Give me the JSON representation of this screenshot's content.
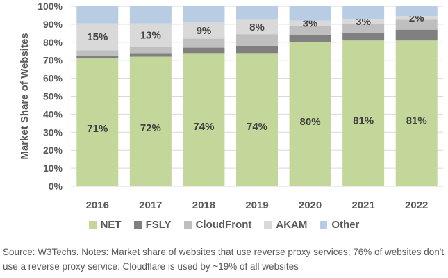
{
  "chart_data": {
    "type": "bar",
    "stacked": true,
    "title": "",
    "xlabel": "",
    "ylabel": "Market Share of Websites",
    "ylim": [
      0,
      100
    ],
    "yticks": [
      "0%",
      "10%",
      "20%",
      "30%",
      "40%",
      "50%",
      "60%",
      "70%",
      "80%",
      "90%",
      "100%"
    ],
    "categories": [
      "2016",
      "2017",
      "2018",
      "2019",
      "2020",
      "2021",
      "2022"
    ],
    "series": [
      {
        "name": "NET",
        "color": "#c4d79b",
        "values": [
          71,
          72,
          74,
          74,
          80,
          81,
          81
        ],
        "labels": [
          "71%",
          "72%",
          "74%",
          "74%",
          "80%",
          "81%",
          "81%"
        ]
      },
      {
        "name": "FSLY",
        "color": "#808080",
        "values": [
          1.5,
          2,
          3,
          4,
          4,
          4,
          6
        ]
      },
      {
        "name": "CloudFront",
        "color": "#bfbfbf",
        "values": [
          3,
          3.5,
          5,
          6.5,
          5,
          5,
          5.5
        ]
      },
      {
        "name": "AKAM",
        "color": "#d9d9d9",
        "values": [
          15,
          13,
          9,
          8,
          3,
          3,
          2
        ],
        "labels": [
          "15%",
          "13%",
          "9%",
          "8%",
          "3%",
          "3%",
          "2%"
        ]
      },
      {
        "name": "Other",
        "color": "#b8cce4",
        "values": [
          9.5,
          9.5,
          9,
          7.5,
          8,
          7,
          5.5
        ]
      }
    ],
    "legend_position": "bottom",
    "grid": true
  },
  "note": "Source: W3Techs. Notes: Market share of websites that use reverse proxy services; 76% of websites don't use a reverse proxy service. Cloudflare is used by ~19% of all websites"
}
